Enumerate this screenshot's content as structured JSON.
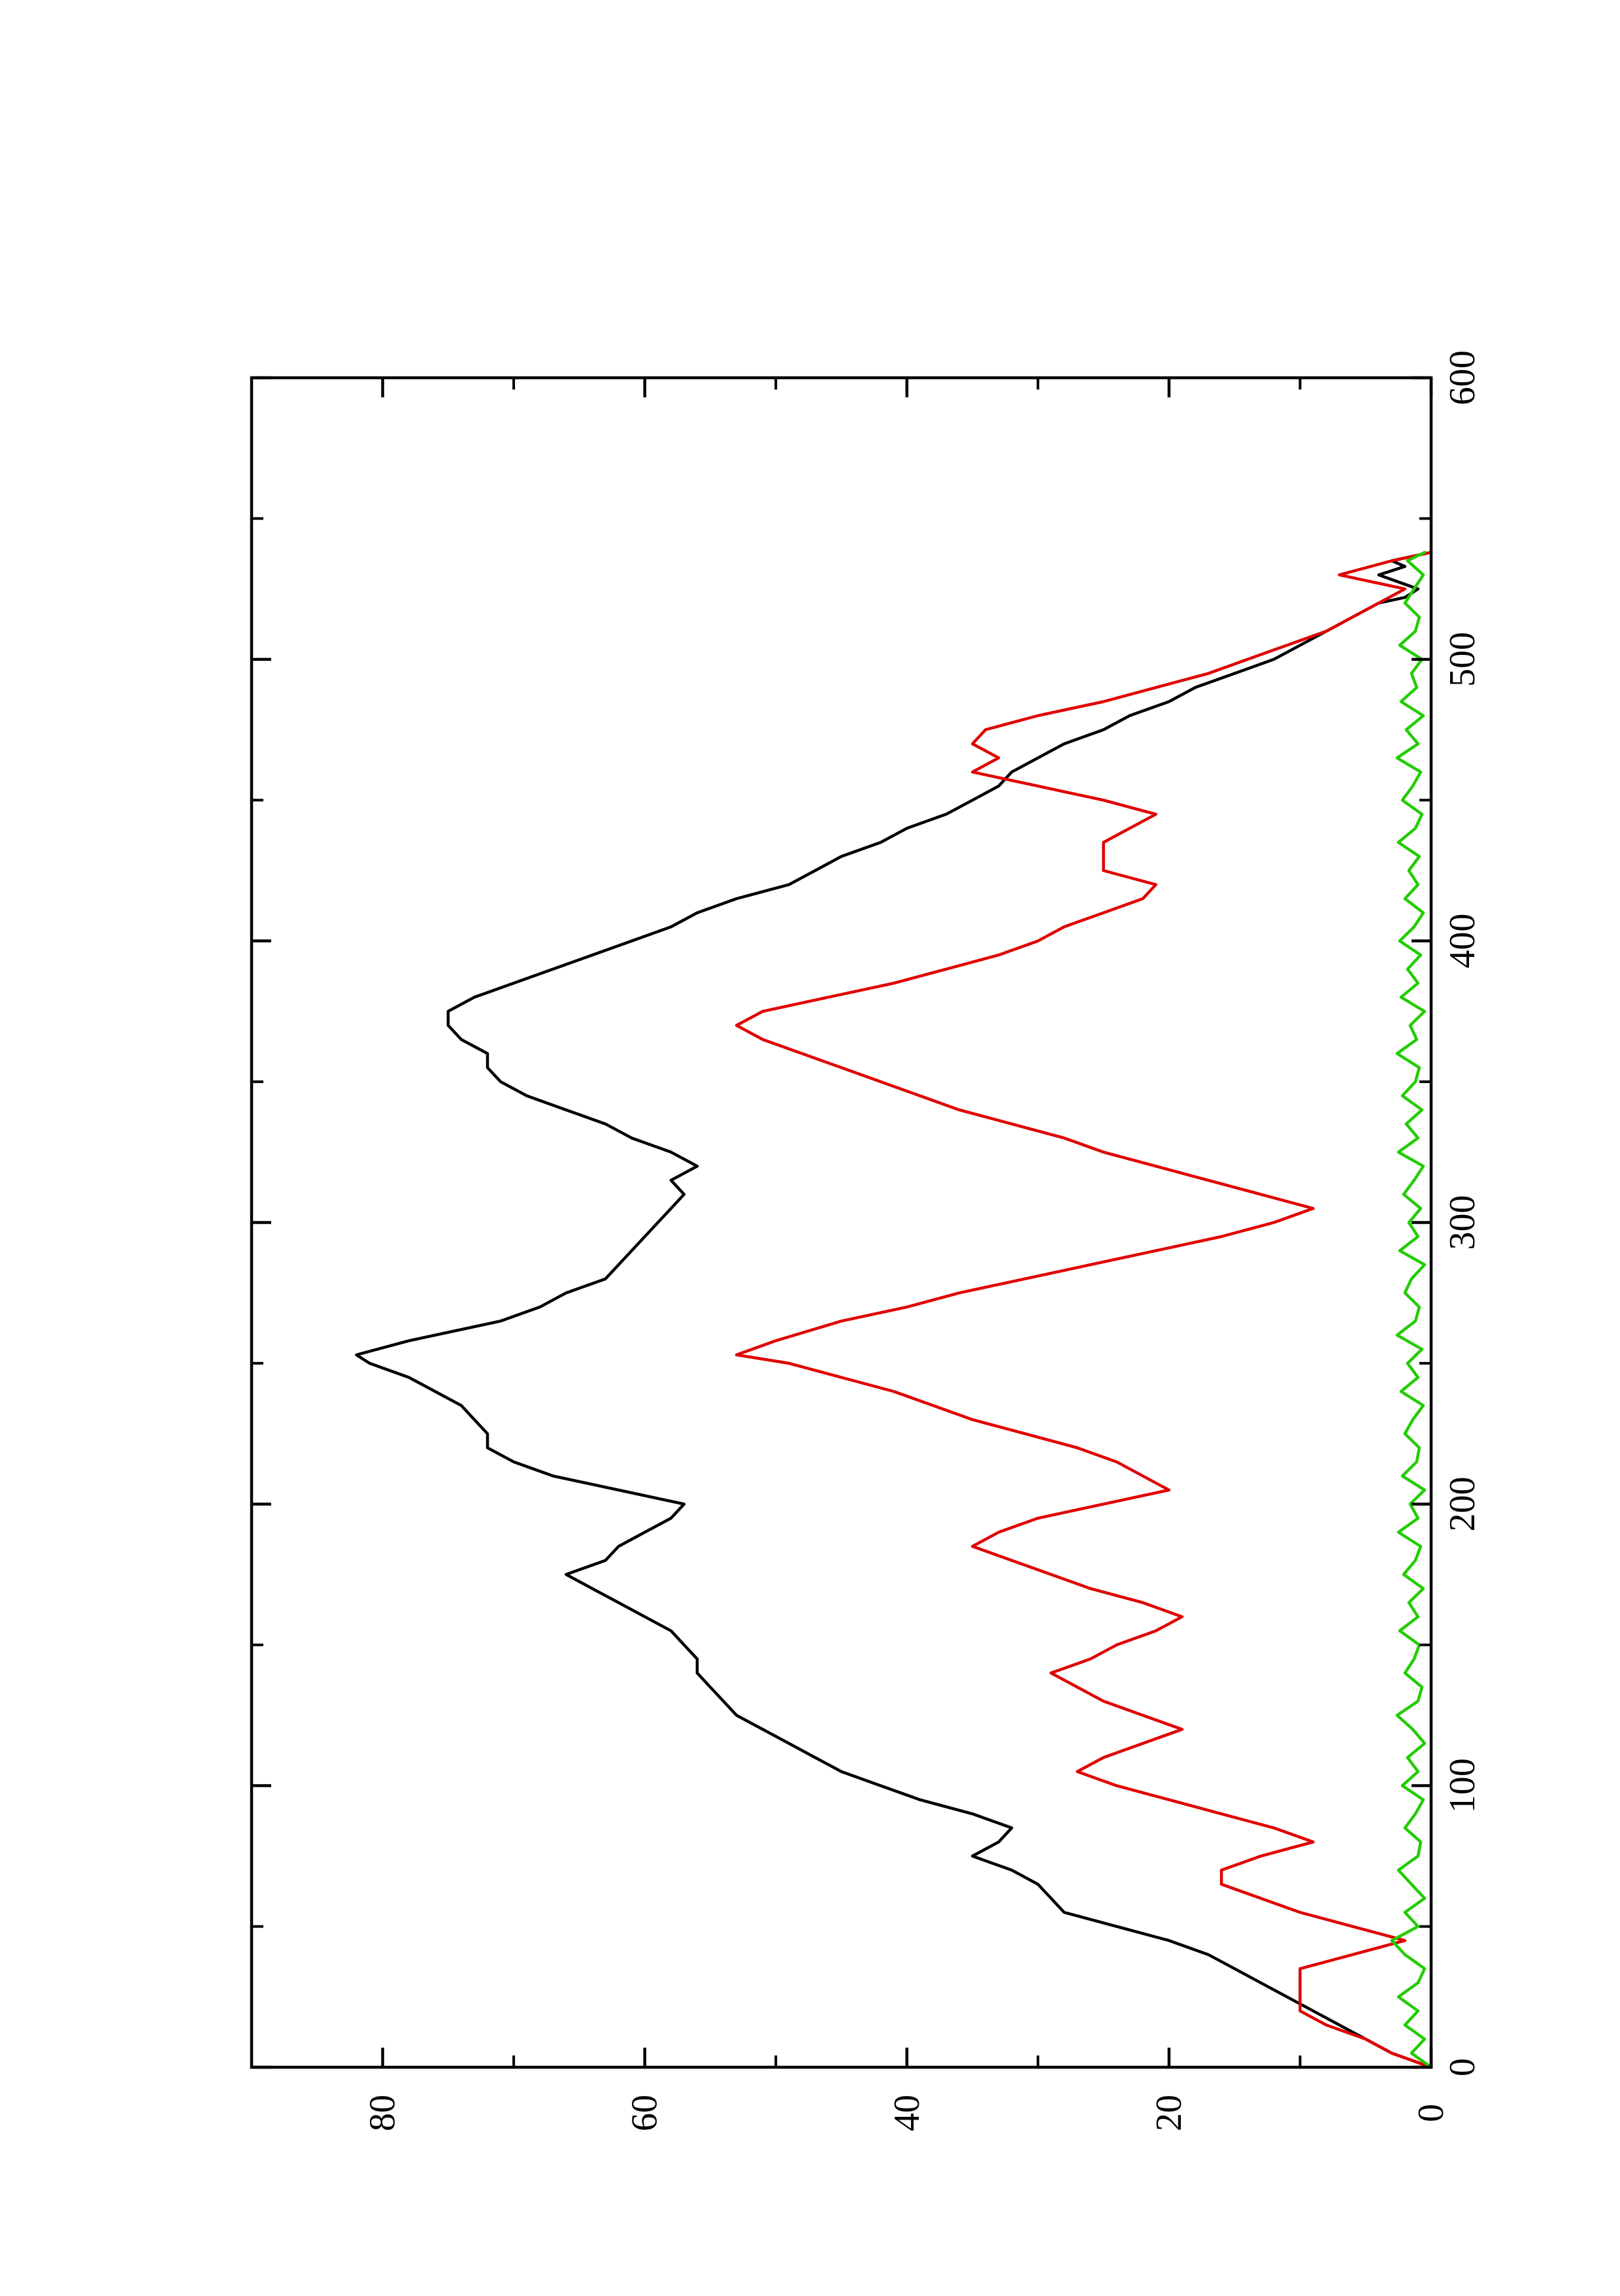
{
  "chart_data": {
    "type": "line",
    "orientation": "rotated-90-ccw",
    "title": "",
    "xlabel": "",
    "ylabel": "",
    "xlim": [
      0,
      600
    ],
    "ylim": [
      0,
      90
    ],
    "x_ticks": [
      0,
      100,
      200,
      300,
      400,
      500,
      600
    ],
    "x_tick_labels": [
      "0",
      "100",
      "200",
      "300",
      "400",
      "500",
      "600"
    ],
    "x_minor_ticks": [
      50,
      150,
      250,
      350,
      450,
      550
    ],
    "y_ticks": [
      0,
      20,
      40,
      60,
      80
    ],
    "y_tick_labels": [
      "0",
      "20",
      "40",
      "60",
      "80"
    ],
    "y_minor_ticks": [
      10,
      30,
      50,
      70
    ],
    "grid": false,
    "legend": "none",
    "series": [
      {
        "color": "#000000",
        "x": [
          0,
          5,
          10,
          15,
          20,
          25,
          30,
          35,
          40,
          45,
          50,
          55,
          60,
          65,
          70,
          75,
          80,
          85,
          90,
          95,
          100,
          105,
          110,
          115,
          120,
          125,
          130,
          135,
          140,
          145,
          150,
          155,
          160,
          165,
          170,
          175,
          180,
          185,
          190,
          195,
          200,
          205,
          210,
          215,
          220,
          225,
          230,
          235,
          240,
          245,
          250,
          253,
          258,
          265,
          270,
          275,
          280,
          285,
          290,
          295,
          300,
          305,
          310,
          315,
          320,
          325,
          330,
          335,
          340,
          345,
          350,
          355,
          360,
          365,
          370,
          375,
          380,
          385,
          390,
          395,
          400,
          405,
          410,
          415,
          420,
          425,
          430,
          435,
          440,
          445,
          450,
          455,
          460,
          465,
          470,
          475,
          480,
          485,
          490,
          495,
          500,
          505,
          510,
          515,
          520,
          522,
          525,
          530,
          533,
          535,
          538
        ],
        "values": [
          0,
          3,
          5,
          7,
          9,
          11,
          13,
          15,
          17,
          20,
          24,
          28,
          29,
          30,
          32,
          35,
          33,
          32,
          35,
          39,
          42,
          45,
          47,
          49,
          51,
          53,
          54,
          55,
          56,
          56,
          57,
          58,
          60,
          62,
          64,
          66,
          63,
          62,
          60,
          58,
          57,
          62,
          67,
          70,
          72,
          72,
          73,
          74,
          76,
          78,
          81,
          82,
          78,
          71,
          68,
          66,
          63,
          62,
          61,
          60,
          59,
          58,
          57,
          58,
          56,
          58,
          61,
          63,
          66,
          69,
          71,
          72,
          72,
          74,
          75,
          75,
          73,
          70,
          67,
          64,
          61,
          58,
          56,
          53,
          49,
          47,
          45,
          42,
          40,
          37,
          35,
          33,
          32,
          30,
          28,
          25,
          23,
          20,
          18,
          15,
          12,
          10,
          8,
          6,
          4,
          2,
          1,
          4,
          2,
          3,
          0
        ]
      },
      {
        "color": "#e00000",
        "x": [
          0,
          5,
          10,
          15,
          20,
          25,
          30,
          35,
          40,
          45,
          50,
          55,
          60,
          65,
          70,
          75,
          80,
          85,
          90,
          95,
          100,
          105,
          110,
          115,
          120,
          125,
          130,
          135,
          140,
          145,
          150,
          155,
          160,
          165,
          170,
          175,
          180,
          185,
          190,
          195,
          200,
          205,
          210,
          215,
          220,
          225,
          230,
          235,
          240,
          245,
          250,
          253,
          258,
          265,
          270,
          275,
          280,
          285,
          290,
          295,
          300,
          305,
          310,
          315,
          320,
          325,
          330,
          335,
          340,
          345,
          350,
          355,
          360,
          365,
          370,
          375,
          380,
          385,
          390,
          395,
          400,
          405,
          410,
          415,
          420,
          425,
          430,
          435,
          440,
          445,
          450,
          455,
          460,
          465,
          470,
          475,
          480,
          485,
          490,
          495,
          500,
          505,
          510,
          515,
          520,
          525,
          530,
          535,
          538
        ],
        "values": [
          0,
          3,
          5,
          8,
          10,
          10,
          10,
          10,
          6,
          2,
          6,
          10,
          13,
          16,
          16,
          13,
          9,
          12,
          16,
          20,
          24,
          27,
          25,
          22,
          19,
          22,
          25,
          27,
          29,
          26,
          24,
          21,
          19,
          22,
          26,
          29,
          32,
          35,
          33,
          30,
          25,
          20,
          22,
          24,
          27,
          31,
          35,
          38,
          41,
          45,
          49,
          53,
          50,
          45,
          40,
          36,
          31,
          26,
          21,
          16,
          12,
          9,
          13,
          17,
          21,
          25,
          28,
          32,
          36,
          39,
          42,
          45,
          48,
          51,
          53,
          51,
          46,
          41,
          37,
          33,
          30,
          28,
          25,
          22,
          21,
          25,
          25,
          25,
          23,
          21,
          25,
          30,
          35,
          33,
          35,
          34,
          30,
          25,
          21,
          17,
          14,
          11,
          8,
          6,
          4,
          2,
          7,
          3,
          0
        ]
      },
      {
        "color": "#22cc00",
        "x": [
          0,
          5,
          10,
          15,
          20,
          25,
          30,
          35,
          40,
          45,
          50,
          55,
          60,
          65,
          70,
          75,
          80,
          85,
          90,
          95,
          100,
          105,
          110,
          115,
          120,
          125,
          130,
          135,
          140,
          145,
          150,
          155,
          160,
          165,
          170,
          175,
          180,
          185,
          190,
          195,
          200,
          205,
          210,
          215,
          220,
          225,
          230,
          235,
          240,
          245,
          250,
          255,
          260,
          265,
          270,
          275,
          280,
          285,
          290,
          295,
          300,
          305,
          310,
          315,
          320,
          325,
          330,
          335,
          340,
          345,
          350,
          355,
          360,
          365,
          370,
          375,
          380,
          385,
          390,
          395,
          400,
          405,
          410,
          415,
          420,
          425,
          430,
          435,
          440,
          445,
          450,
          455,
          460,
          465,
          470,
          475,
          480,
          485,
          490,
          495,
          500,
          505,
          510,
          515,
          520,
          525,
          530,
          535,
          538
        ],
        "values": [
          0,
          1.5,
          0.5,
          2,
          1,
          2.5,
          1,
          0.5,
          2,
          3,
          1,
          2,
          0.5,
          1.5,
          2.5,
          1,
          0.8,
          2,
          1.2,
          0.6,
          2.2,
          1,
          1.8,
          0.5,
          1.4,
          2.6,
          1,
          0.7,
          2,
          1.3,
          0.9,
          2.4,
          1,
          1.7,
          0.6,
          2.1,
          1.2,
          0.8,
          2.5,
          1,
          1.6,
          0.5,
          2.2,
          1.1,
          0.9,
          2,
          1.4,
          0.6,
          2.3,
          1,
          1.8,
          0.7,
          2.6,
          1.2,
          0.9,
          2,
          1.5,
          0.5,
          2.4,
          1,
          1.7,
          0.8,
          2.1,
          1.3,
          0.6,
          2.5,
          1,
          1.9,
          0.7,
          2.2,
          1.2,
          0.9,
          2.6,
          1.1,
          1.6,
          0.5,
          2.3,
          1,
          1.8,
          0.8,
          2.4,
          1.3,
          0.6,
          2,
          1,
          1.7,
          0.9,
          2.5,
          1.2,
          0.7,
          2.2,
          1.4,
          0.8,
          2.6,
          1,
          1.9,
          0.6,
          2.3,
          1.1,
          1.5,
          0.7,
          2.4,
          1.2,
          0.9,
          2,
          1.3,
          0.6,
          1.8,
          0.5
        ]
      }
    ]
  }
}
